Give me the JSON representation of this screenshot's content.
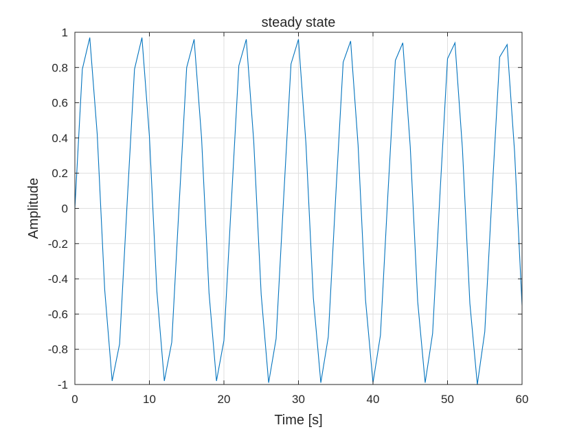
{
  "chart_data": {
    "type": "line",
    "title": "steady state",
    "xlabel": "Time [s]",
    "ylabel": "Amplitude",
    "xlim": [
      0,
      60
    ],
    "ylim": [
      -1,
      1
    ],
    "grid": true,
    "x_ticks": [
      "0",
      "10",
      "20",
      "30",
      "40",
      "50",
      "60"
    ],
    "y_ticks": [
      "-1",
      "-0.8",
      "-0.6",
      "-0.4",
      "-0.2",
      "0",
      "0.2",
      "0.4",
      "0.6",
      "0.8",
      "1"
    ],
    "series": [
      {
        "color": "#0072BD",
        "x": [
          0,
          1,
          2,
          3,
          4,
          5,
          6,
          7,
          8,
          9,
          10,
          11,
          12,
          13,
          14,
          15,
          16,
          17,
          18,
          19,
          20,
          21,
          22,
          23,
          24,
          25,
          26,
          27,
          28,
          29,
          30,
          31,
          32,
          33,
          34,
          35,
          36,
          37,
          38,
          39,
          40,
          41,
          42,
          43,
          44,
          45,
          46,
          47,
          48,
          49,
          50,
          51,
          52,
          53,
          54,
          55,
          56,
          57,
          58,
          59,
          60
        ],
        "y": [
          0,
          0.79,
          0.97,
          0.42,
          -0.46,
          -0.98,
          -0.77,
          0.02,
          0.79,
          0.97,
          0.41,
          -0.47,
          -0.98,
          -0.76,
          0.03,
          0.8,
          0.96,
          0.4,
          -0.48,
          -0.98,
          -0.75,
          0.04,
          0.81,
          0.96,
          0.38,
          -0.49,
          -0.99,
          -0.74,
          0.05,
          0.82,
          0.96,
          0.37,
          -0.51,
          -0.99,
          -0.73,
          0.07,
          0.83,
          0.95,
          0.36,
          -0.52,
          -0.99,
          -0.72,
          0.08,
          0.84,
          0.94,
          0.35,
          -0.53,
          -0.99,
          -0.71,
          0.09,
          0.85,
          0.94,
          0.34,
          -0.54,
          -1.0,
          -0.7,
          0.1,
          0.86,
          0.93,
          0.32,
          -0.55
        ]
      }
    ]
  }
}
